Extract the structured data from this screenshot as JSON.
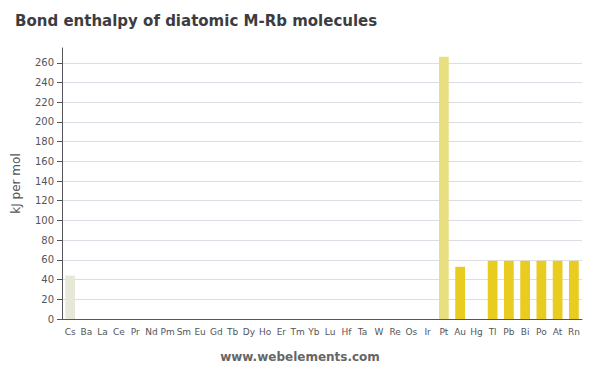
{
  "chart_data": {
    "type": "bar",
    "title": "Bond enthalpy of diatomic M-Rb molecules",
    "ylabel": "kJ per mol",
    "annotation": "www.webelements.com",
    "categories": [
      "Cs",
      "Ba",
      "La",
      "Ce",
      "Pr",
      "Nd",
      "Pm",
      "Sm",
      "Eu",
      "Gd",
      "Tb",
      "Dy",
      "Ho",
      "Er",
      "Tm",
      "Yb",
      "Lu",
      "Hf",
      "Ta",
      "W",
      "Re",
      "Os",
      "Ir",
      "Pt",
      "Au",
      "Hg",
      "Tl",
      "Pb",
      "Bi",
      "Po",
      "At",
      "Rn"
    ],
    "values": [
      44,
      null,
      null,
      null,
      null,
      null,
      null,
      null,
      null,
      null,
      null,
      null,
      null,
      null,
      null,
      null,
      null,
      null,
      null,
      null,
      null,
      null,
      null,
      266,
      53,
      null,
      59,
      59,
      59,
      59,
      59,
      59
    ],
    "colors": [
      "#e8e8d8",
      "#e8e8d8",
      "#22bb22",
      "#22bb22",
      "#22bb22",
      "#22bb22",
      "#22bb22",
      "#22bb22",
      "#22bb22",
      "#22bb22",
      "#22bb22",
      "#22bb22",
      "#22bb22",
      "#22bb22",
      "#22bb22",
      "#22bb22",
      "#22bb22",
      "#ee2222",
      "#ee2222",
      "#ee2222",
      "#ee2222",
      "#ee2222",
      "#ee2222",
      "#e8e080",
      "#e8cc20",
      "#e8cc20",
      "#e8cc20",
      "#e8cc20",
      "#e8cc20",
      "#e8cc20",
      "#e8cc20",
      "#e8cc20"
    ],
    "ylim": [
      0,
      275
    ],
    "yticks": [
      0,
      20,
      40,
      60,
      80,
      100,
      120,
      140,
      160,
      180,
      200,
      220,
      240,
      260
    ],
    "grid": true
  }
}
